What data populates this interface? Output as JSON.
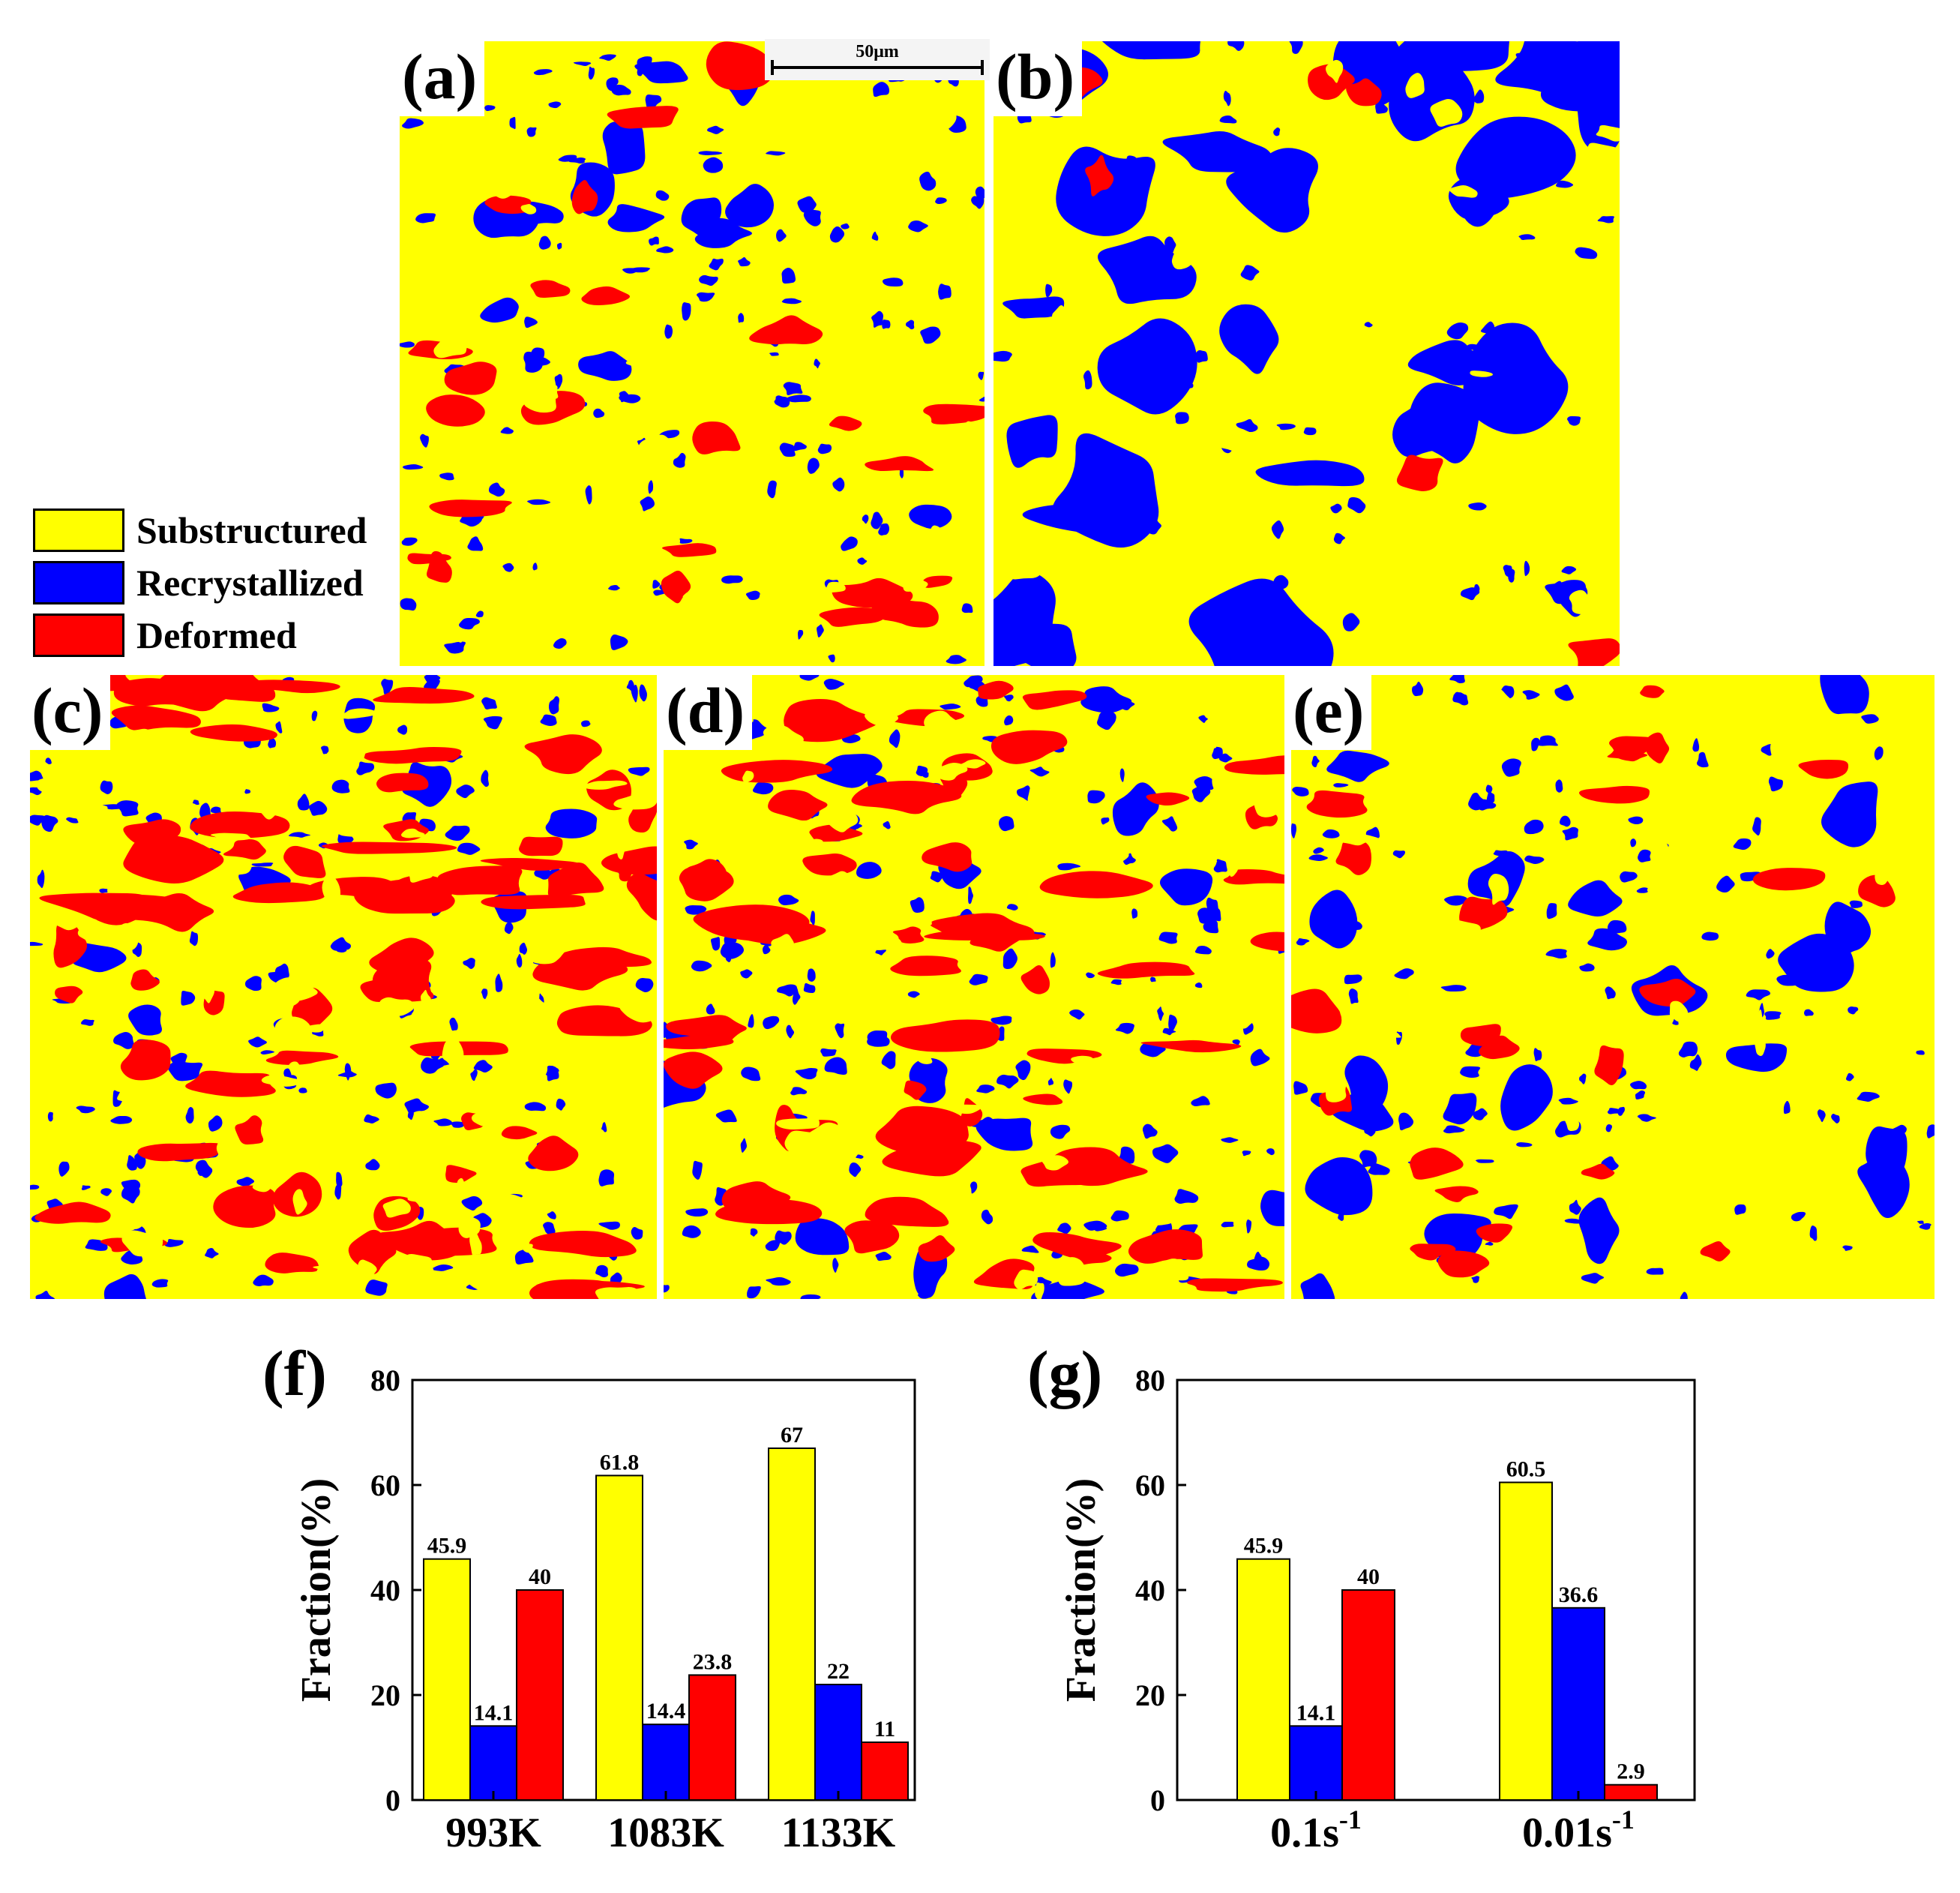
{
  "figure": {
    "panels": [
      "(a)",
      "(b)",
      "(c)",
      "(d)",
      "(e)"
    ],
    "scale_bar": "50μm",
    "colors": {
      "substructured": "#ffff00",
      "recrystallized": "#0000ff",
      "deformed": "#ff0000"
    }
  },
  "legend": {
    "items": [
      {
        "label": "Substructured",
        "color": "#ffff00"
      },
      {
        "label": "Recrystallized",
        "color": "#0000ff"
      },
      {
        "label": "Deformed",
        "color": "#ff0000"
      }
    ]
  },
  "chart_data": [
    {
      "type": "bar",
      "panel": "(f)",
      "categories": [
        "993K",
        "1083K",
        "1133K"
      ],
      "series": [
        {
          "name": "Substructured",
          "color": "#ffff00",
          "values": [
            45.9,
            61.8,
            67
          ]
        },
        {
          "name": "Recrystallized",
          "color": "#0000ff",
          "values": [
            14.1,
            14.4,
            22
          ]
        },
        {
          "name": "Deformed",
          "color": "#ff0000",
          "values": [
            40,
            23.8,
            11
          ]
        }
      ],
      "value_labels": [
        [
          "45.9",
          "61.8",
          "67"
        ],
        [
          "14.1",
          "14.4",
          "22"
        ],
        [
          "40",
          "23.8",
          "11"
        ]
      ],
      "ylabel": "Fraction(%)",
      "ylim": [
        0,
        80
      ],
      "yticks": [
        "0",
        "20",
        "40",
        "60",
        "80"
      ]
    },
    {
      "type": "bar",
      "panel": "(g)",
      "categories": [
        {
          "base": "0.1s",
          "sup": "-1"
        },
        {
          "base": "0.01s",
          "sup": "-1"
        }
      ],
      "series": [
        {
          "name": "Substructured",
          "color": "#ffff00",
          "values": [
            45.9,
            60.5
          ]
        },
        {
          "name": "Recrystallized",
          "color": "#0000ff",
          "values": [
            14.1,
            36.6
          ]
        },
        {
          "name": "Deformed",
          "color": "#ff0000",
          "values": [
            40,
            2.9
          ]
        }
      ],
      "value_labels": [
        [
          "45.9",
          "60.5"
        ],
        [
          "14.1",
          "36.6"
        ],
        [
          "40",
          "2.9"
        ]
      ],
      "ylabel": "Fraction(%)",
      "ylim": [
        0,
        80
      ],
      "yticks": [
        "0",
        "20",
        "40",
        "60",
        "80"
      ]
    }
  ]
}
